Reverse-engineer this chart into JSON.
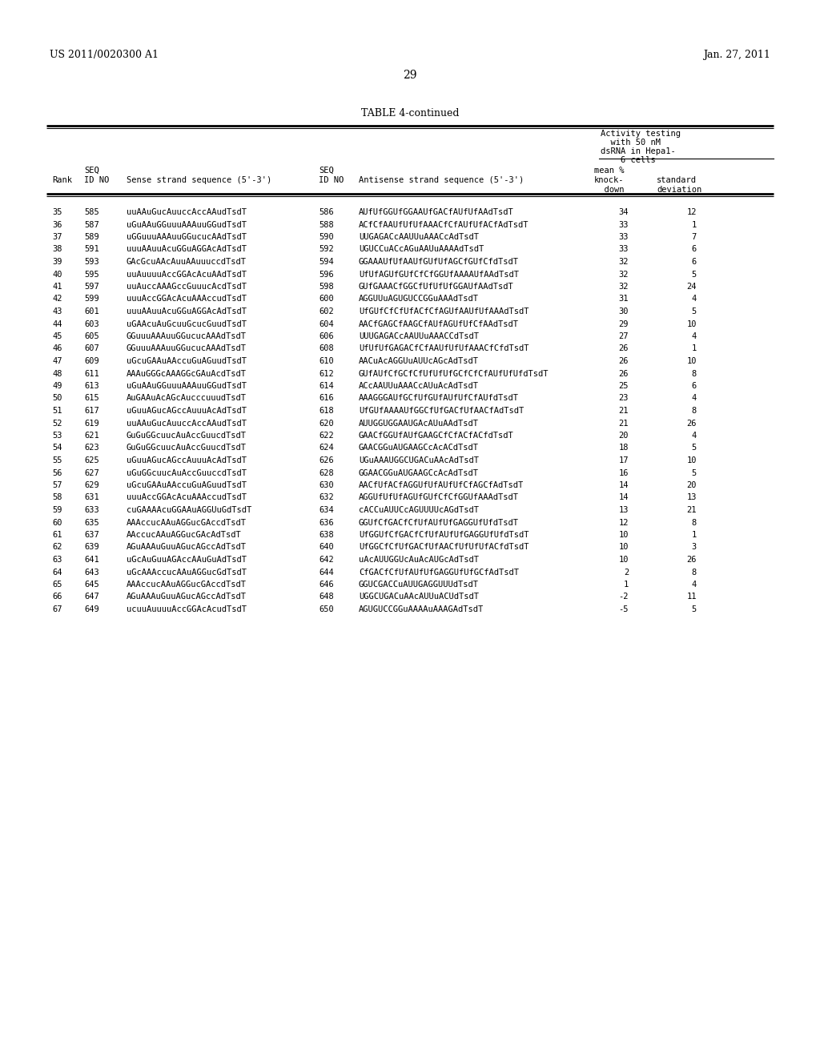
{
  "header_left": "US 2011/0020300 A1",
  "header_right": "Jan. 27, 2011",
  "page_number": "29",
  "table_title": "TABLE 4-continued",
  "rows": [
    [
      "35",
      "585",
      "uuAAuGucAuuccAccAAudTsdT",
      "586",
      "AUfUfGGUfGGAAUfGACfAUfUfAAdTsdT",
      "34",
      "12"
    ],
    [
      "36",
      "587",
      "uGuAAuGGuuuAAAuuGGudTsdT",
      "588",
      "ACfCfAAUfUfUfAAACfCfAUfUfACfAdTsdT",
      "33",
      "1"
    ],
    [
      "37",
      "589",
      "uGGuuuAAAuuGGucucAAdTsdT",
      "590",
      "UUGAGACcAAUUuAAACcAdTsdT",
      "33",
      "7"
    ],
    [
      "38",
      "591",
      "uuuAAuuAcuGGuAGGAcAdTsdT",
      "592",
      "UGUCCuACcAGuAAUuAAAAdTsdT",
      "33",
      "6"
    ],
    [
      "39",
      "593",
      "GAcGcuAAcAuuAAuuuccdTsdT",
      "594",
      "GGAAAUfUfAAUfGUfUfAGCfGUfCfdTsdT",
      "32",
      "6"
    ],
    [
      "40",
      "595",
      "uuAuuuuAccGGAcAcuAAdTsdT",
      "596",
      "UfUfAGUfGUfCfCfGGUfAAAAUfAAdTsdT",
      "32",
      "5"
    ],
    [
      "41",
      "597",
      "uuAuccAAAGccGuuucAcdTsdT",
      "598",
      "GUfGAAACfGGCfUfUfUfGGAUfAAdTsdT",
      "32",
      "24"
    ],
    [
      "42",
      "599",
      "uuuAccGGAcAcuAAAccudTsdT",
      "600",
      "AGGUUuAGUGUCCGGuAAAdTsdT",
      "31",
      "4"
    ],
    [
      "43",
      "601",
      "uuuAAuuAcuGGuAGGAcAdTsdT",
      "602",
      "UfGUfCfCfUfACfCfAGUfAAUfUfAAAdTsdT",
      "30",
      "5"
    ],
    [
      "44",
      "603",
      "uGAAcuAuGcuuGcucGuudTsdT",
      "604",
      "AACfGAGCfAAGCfAUfAGUfUfCfAAdTsdT",
      "29",
      "10"
    ],
    [
      "45",
      "605",
      "GGuuuAAAuuGGucucAAAdTsdT",
      "606",
      "UUUGAGACcAAUUuAAACCdTsdT",
      "27",
      "4"
    ],
    [
      "46",
      "607",
      "GGuuuAAAuuGGucucAAAdTsdT",
      "608",
      "UfUfUfGAGACfCfAAUfUfUfAAACfCfdTsdT",
      "26",
      "1"
    ],
    [
      "47",
      "609",
      "uGcuGAAuAAccuGuAGuudTsdT",
      "610",
      "AACuAcAGGUuAUUcAGcAdTsdT",
      "26",
      "10"
    ],
    [
      "48",
      "611",
      "AAAuGGGcAAAGGcGAuAcdTsdT",
      "612",
      "GUfAUfCfGCfCfUfUfUfGCfCfCfAUfUfUfdTsdT",
      "26",
      "8"
    ],
    [
      "49",
      "613",
      "uGuAAuGGuuuAAAuuGGudTsdT",
      "614",
      "ACcAAUUuAAACcAUuAcAdTsdT",
      "25",
      "6"
    ],
    [
      "50",
      "615",
      "AuGAAuAcAGcAucccuuudTsdT",
      "616",
      "AAAGGGAUfGCfUfGUfAUfUfCfAUfdTsdT",
      "23",
      "4"
    ],
    [
      "51",
      "617",
      "uGuuAGucAGccAuuuAcAdTsdT",
      "618",
      "UfGUfAAAAUfGGCfUfGACfUfAACfAdTsdT",
      "21",
      "8"
    ],
    [
      "52",
      "619",
      "uuAAuGucAuuccAccAAudTsdT",
      "620",
      "AUUGGUGGAAUGAcAUuAAdTsdT",
      "21",
      "26"
    ],
    [
      "53",
      "621",
      "GuGuGGcuucAuAccGuucdTsdT",
      "622",
      "GAACfGGUfAUfGAAGCfCfACfACfdTsdT",
      "20",
      "4"
    ],
    [
      "54",
      "623",
      "GuGuGGcuucAuAccGuucdTsdT",
      "624",
      "GAACGGuAUGAAGCcAcACdTsdT",
      "18",
      "5"
    ],
    [
      "55",
      "625",
      "uGuuAGucAGccAuuuAcAdTsdT",
      "626",
      "UGuAAAUGGCUGACuAAcAdTsdT",
      "17",
      "10"
    ],
    [
      "56",
      "627",
      "uGuGGcuucAuAccGuuccdTsdT",
      "628",
      "GGAACGGuAUGAAGCcAcAdTsdT",
      "16",
      "5"
    ],
    [
      "57",
      "629",
      "uGcuGAAuAAccuGuAGuudTsdT",
      "630",
      "AACfUfACfAGGUfUfAUfUfCfAGCfAdTsdT",
      "14",
      "20"
    ],
    [
      "58",
      "631",
      "uuuAccGGAcAcuAAAccudTsdT",
      "632",
      "AGGUfUfUfAGUfGUfCfCfGGUfAAAdTsdT",
      "14",
      "13"
    ],
    [
      "59",
      "633",
      "cuGAAAAcuGGAAuAGGUuGdTsdT",
      "634",
      "cACCuAUUCcAGUUUUcAGdTsdT",
      "13",
      "21"
    ],
    [
      "60",
      "635",
      "AAAccucAAuAGGucGAccdTsdT",
      "636",
      "GGUfCfGACfCfUfAUfUfGAGGUfUfdTsdT",
      "12",
      "8"
    ],
    [
      "61",
      "637",
      "AAccucAAuAGGucGAcAdTsdT",
      "638",
      "UfGGUfCfGACfCfUfAUfUfGAGGUfUfdTsdT",
      "10",
      "1"
    ],
    [
      "62",
      "639",
      "AGuAAAuGuuAGucAGccAdTsdT",
      "640",
      "UfGGCfCfUfGACfUfAACfUfUfUfACfdTsdT",
      "10",
      "3"
    ],
    [
      "63",
      "641",
      "uGcAuGuuAGAccAAuGuAdTsdT",
      "642",
      "uAcAUUGGUcAuAcAUGcAdTsdT",
      "10",
      "26"
    ],
    [
      "64",
      "643",
      "uGcAAAccucAAuAGGucGdTsdT",
      "644",
      "CfGACfCfUfAUfUfGAGGUfUfGCfAdTsdT",
      "2",
      "8"
    ],
    [
      "65",
      "645",
      "AAAccucAAuAGGucGAccdTsdT",
      "646",
      "GGUCGACCuAUUGAGGUUUdTsdT",
      "1",
      "4"
    ],
    [
      "66",
      "647",
      "AGuAAAuGuuAGucAGccAdTsdT",
      "648",
      "UGGCUGACuAAcAUUuACUdTsdT",
      "-2",
      "11"
    ],
    [
      "67",
      "649",
      "ucuuAuuuuAccGGAcAcudTsdT",
      "650",
      "AGUGUCCGGuAAAAuAAAGAdTsdT",
      "-5",
      "5"
    ]
  ],
  "background_color": "#ffffff",
  "text_color": "#000000"
}
